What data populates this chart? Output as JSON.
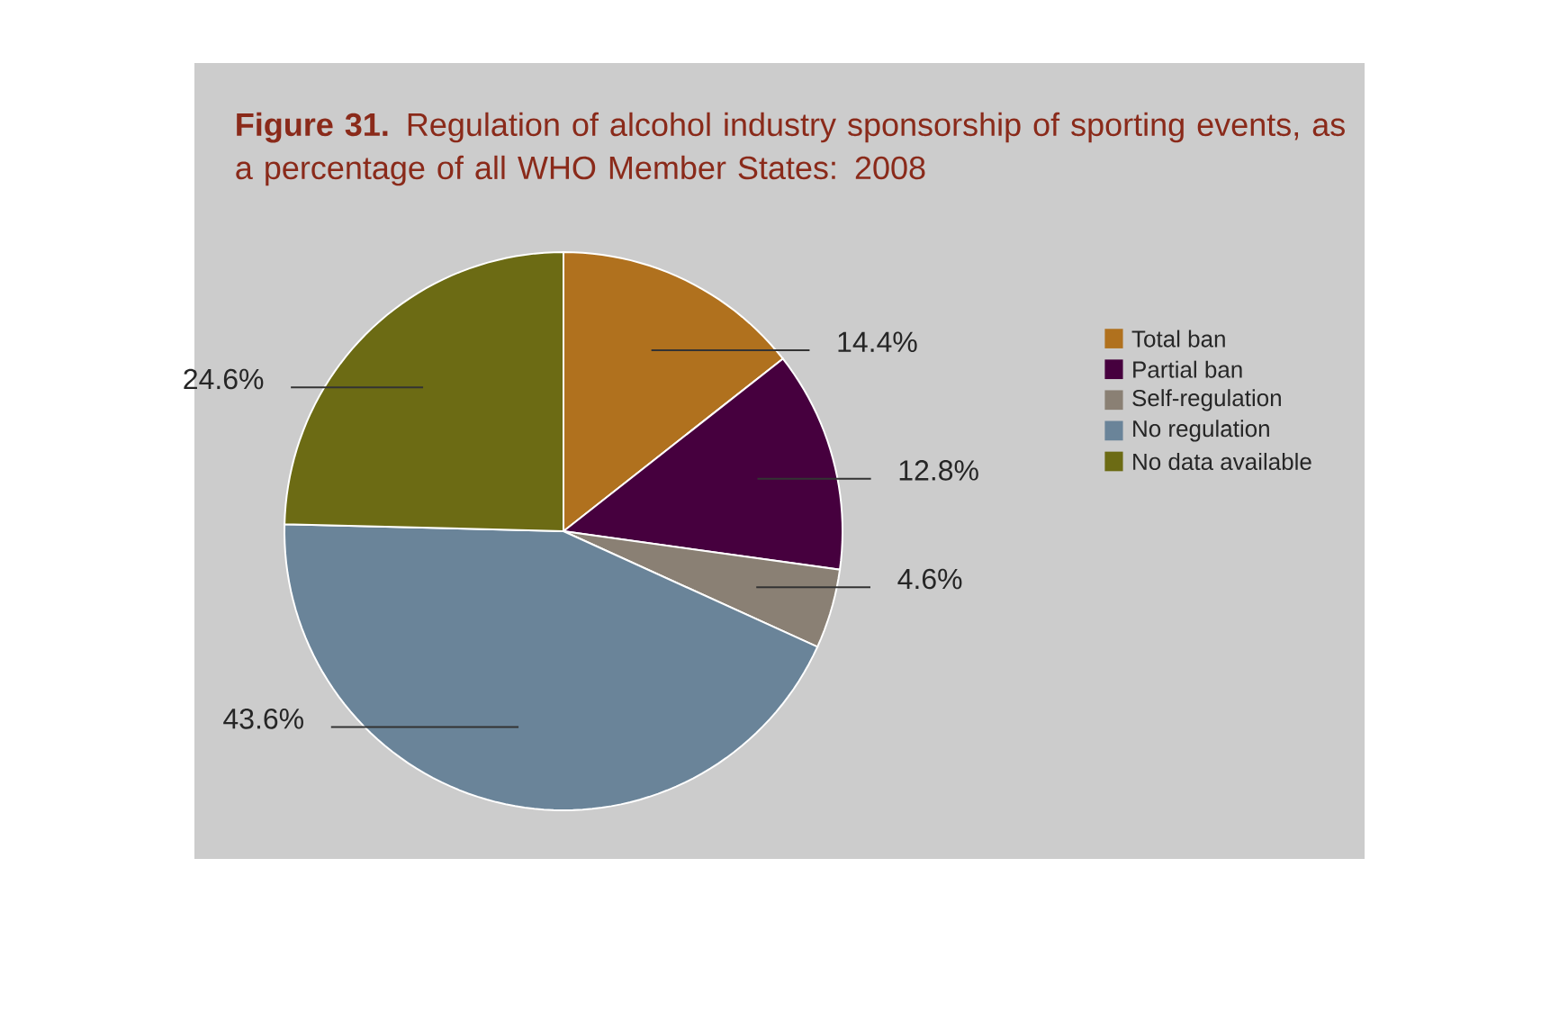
{
  "chart_data": {
    "type": "pie",
    "title": "**Figure 31.** Regulation of alcohol industry sponsorship of sporting events, as a percentage of all WHO Member States: 2008",
    "categories": [
      "Total ban",
      "Partial ban",
      "Self-regulation",
      "No regulation",
      "No data available"
    ],
    "values": [
      14.4,
      12.8,
      4.6,
      43.6,
      24.6
    ],
    "value_labels": [
      "14.4%",
      "12.8%",
      "4.6%",
      "43.6%",
      "24.6%"
    ],
    "colors": [
      "#b0711e",
      "#46003e",
      "#8a8074",
      "#6a8499",
      "#6c6b14"
    ],
    "legend": "right"
  }
}
